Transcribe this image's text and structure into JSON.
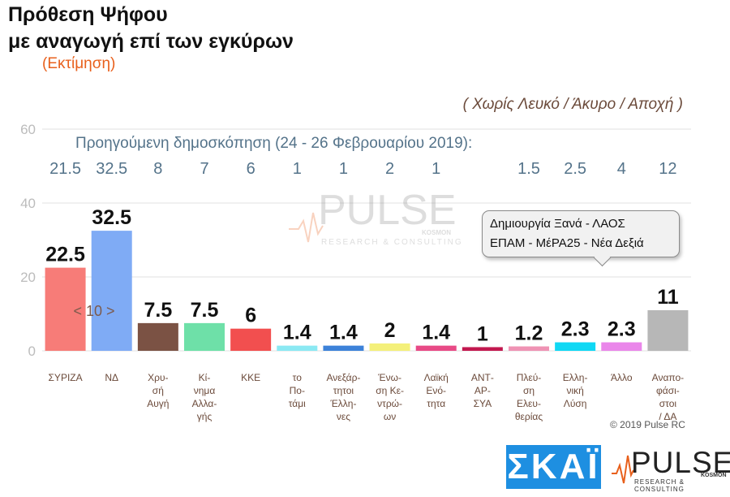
{
  "header": {
    "title_line1": "Πρόθεση Ψήφου",
    "title_line2": "με αναγωγή επί των εγκύρων",
    "subtitle": "(Εκτίμηση)",
    "note": "( Χωρίς Λευκό / Άκυρο / Αποχή )"
  },
  "previous_poll": {
    "title": "Προηγούμενη δημοσκόπηση (24 - 26 Φεβρουαρίου 2019):",
    "values": [
      "21.5",
      "32.5",
      "8",
      "7",
      "6",
      "1",
      "1",
      "2",
      "1",
      "",
      "1.5",
      "2.5",
      "4",
      "12"
    ]
  },
  "callout": {
    "line1": "Δημιουργία Ξανά - ΛΑΟΣ",
    "line2": "ΕΠΑΜ - ΜέΡΑ25 - Νέα Δεξιά"
  },
  "annotation_lead": "< 10 >",
  "watermark": {
    "word": "PULSE",
    "sub": "RESEARCH & CONSULTING",
    "brand": "KOSMON"
  },
  "footer": {
    "copyright": "© 2019 Pulse RC",
    "skai_logo": "ΣΚΑΪ",
    "pulse_logo": "PULSE",
    "pulse_logo_sub": "RESEARCH & CONSULTING",
    "pulse_logo_brand": "KOSMON"
  },
  "chart_data": {
    "type": "bar",
    "ylim": [
      0,
      60
    ],
    "yticks": [
      0,
      20,
      40,
      60
    ],
    "grid": true,
    "categories": [
      [
        "ΣΥΡΙΖΑ"
      ],
      [
        "ΝΔ"
      ],
      [
        "Χρυ-",
        "σή",
        "Αυγή"
      ],
      [
        "Κί-",
        "νημα",
        "Αλλα-",
        "γής"
      ],
      [
        "ΚΚΕ"
      ],
      [
        "το",
        "Πο-",
        "τάμι"
      ],
      [
        "Ανεξάρ-",
        "τητοι",
        "Έλλη-",
        "νες"
      ],
      [
        "Ένω-",
        "ση Κε-",
        "ντρώ-",
        "ων"
      ],
      [
        "Λαϊκή",
        "Ενό-",
        "τητα"
      ],
      [
        "ΑΝΤ-",
        "ΑΡ-",
        "ΣΥΑ"
      ],
      [
        "Πλεύ-",
        "ση",
        "Ελευ-",
        "θερίας"
      ],
      [
        "Ελλη-",
        "νική",
        "Λύση"
      ],
      [
        "Άλλο"
      ],
      [
        "Αναπο-",
        "φάσι-",
        "στοι",
        "/ ΔΑ"
      ]
    ],
    "values": [
      22.5,
      32.5,
      7.5,
      7.5,
      6,
      1.4,
      1.4,
      2,
      1.4,
      1,
      1.2,
      2.3,
      2.3,
      11
    ],
    "value_labels": [
      "22.5",
      "32.5",
      "7.5",
      "7.5",
      "6",
      "1.4",
      "1.4",
      "2",
      "1.4",
      "1",
      "1.2",
      "2.3",
      "2.3",
      "11"
    ],
    "colors": [
      "#f77c78",
      "#7fabf5",
      "#7b5244",
      "#6ee0a8",
      "#f24f4f",
      "#8be9f3",
      "#3d82d9",
      "#f4f07a",
      "#e84a86",
      "#c2184f",
      "#ef93b4",
      "#10d8f4",
      "#ea86ea",
      "#b7b7b7"
    ]
  }
}
